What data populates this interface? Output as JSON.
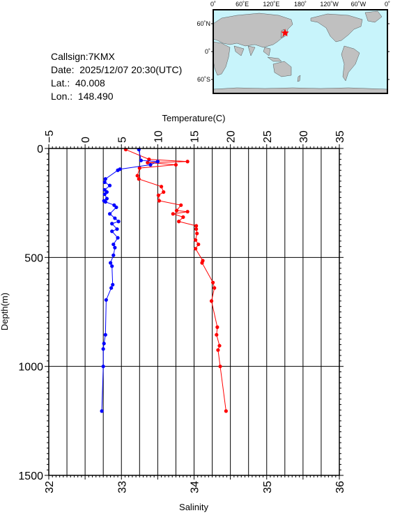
{
  "info": {
    "callsign": "Callsign:7KMX",
    "date": "Date:  2025/12/07 20:30(UTC)",
    "lat": "Lat.:  40.008",
    "lon": "Lon.:  148.490"
  },
  "map": {
    "lon_ticks": [
      "0˚",
      "60˚E",
      "120˚E",
      "180˚",
      "120˚W",
      "60˚W",
      "0˚"
    ],
    "lat_ticks": [
      "60˚N",
      "0˚",
      "60˚S"
    ],
    "station": {
      "lat": 40.008,
      "lon": 148.49
    },
    "colors": {
      "ocean": "#c8f4fb",
      "land": "#c0c0c0",
      "marker": "#ff0000"
    }
  },
  "chart_data": {
    "type": "line",
    "title": "",
    "ylabel": "Depth(m)",
    "ylim": [
      0,
      1500
    ],
    "y_ticks": [
      "0",
      "500",
      "1000",
      "1500"
    ],
    "y_inverted": true,
    "grid": true,
    "top_axis": {
      "label": "Temperature(C)",
      "range": [
        -5,
        35
      ],
      "ticks": [
        "−5",
        "0",
        "5",
        "10",
        "15",
        "20",
        "25",
        "30",
        "35"
      ]
    },
    "bottom_axis": {
      "label": "Salinity",
      "range": [
        32,
        36
      ],
      "ticks": [
        "32",
        "33",
        "34",
        "35",
        "36"
      ]
    },
    "series": [
      {
        "kind": "temperature",
        "axis": "top",
        "color": "#ff0000",
        "points": [
          [
            5.6,
            5
          ],
          [
            8.8,
            50
          ],
          [
            14.1,
            60
          ],
          [
            8.6,
            65
          ],
          [
            12.5,
            75
          ],
          [
            7.5,
            90
          ],
          [
            7.2,
            125
          ],
          [
            7.4,
            140
          ],
          [
            10.5,
            175
          ],
          [
            10.8,
            200
          ],
          [
            10.1,
            215
          ],
          [
            10.2,
            240
          ],
          [
            13.2,
            260
          ],
          [
            12.6,
            285
          ],
          [
            14.1,
            290
          ],
          [
            12.1,
            300
          ],
          [
            13.5,
            315
          ],
          [
            12.9,
            335
          ],
          [
            15.3,
            355
          ],
          [
            15.3,
            370
          ],
          [
            15.4,
            390
          ],
          [
            15.2,
            420
          ],
          [
            15.6,
            440
          ],
          [
            15.2,
            460
          ],
          [
            16.2,
            515
          ],
          [
            16.1,
            525
          ],
          [
            17.6,
            615
          ],
          [
            17.8,
            640
          ],
          [
            17.4,
            700
          ],
          [
            18.2,
            820
          ],
          [
            18.1,
            855
          ],
          [
            18.5,
            905
          ],
          [
            18.3,
            925
          ],
          [
            18.6,
            1000
          ],
          [
            19.4,
            1205
          ]
        ]
      },
      {
        "kind": "salinity",
        "axis": "bottom",
        "color": "#0000ff",
        "points": [
          [
            33.24,
            5
          ],
          [
            33.27,
            55
          ],
          [
            33.5,
            60
          ],
          [
            33.4,
            75
          ],
          [
            32.98,
            95
          ],
          [
            32.95,
            100
          ],
          [
            32.78,
            140
          ],
          [
            32.77,
            155
          ],
          [
            32.84,
            170
          ],
          [
            32.77,
            190
          ],
          [
            32.8,
            200
          ],
          [
            32.77,
            210
          ],
          [
            32.8,
            230
          ],
          [
            32.76,
            240
          ],
          [
            32.78,
            245
          ],
          [
            32.9,
            260
          ],
          [
            32.93,
            270
          ],
          [
            32.84,
            300
          ],
          [
            32.91,
            320
          ],
          [
            32.96,
            335
          ],
          [
            32.87,
            345
          ],
          [
            32.94,
            370
          ],
          [
            32.87,
            380
          ],
          [
            32.95,
            410
          ],
          [
            32.89,
            440
          ],
          [
            32.91,
            455
          ],
          [
            32.89,
            490
          ],
          [
            32.85,
            525
          ],
          [
            32.87,
            540
          ],
          [
            32.88,
            625
          ],
          [
            32.86,
            640
          ],
          [
            32.79,
            695
          ],
          [
            32.78,
            855
          ],
          [
            32.76,
            895
          ],
          [
            32.75,
            920
          ],
          [
            32.75,
            1000
          ],
          [
            32.73,
            1205
          ]
        ]
      }
    ]
  }
}
